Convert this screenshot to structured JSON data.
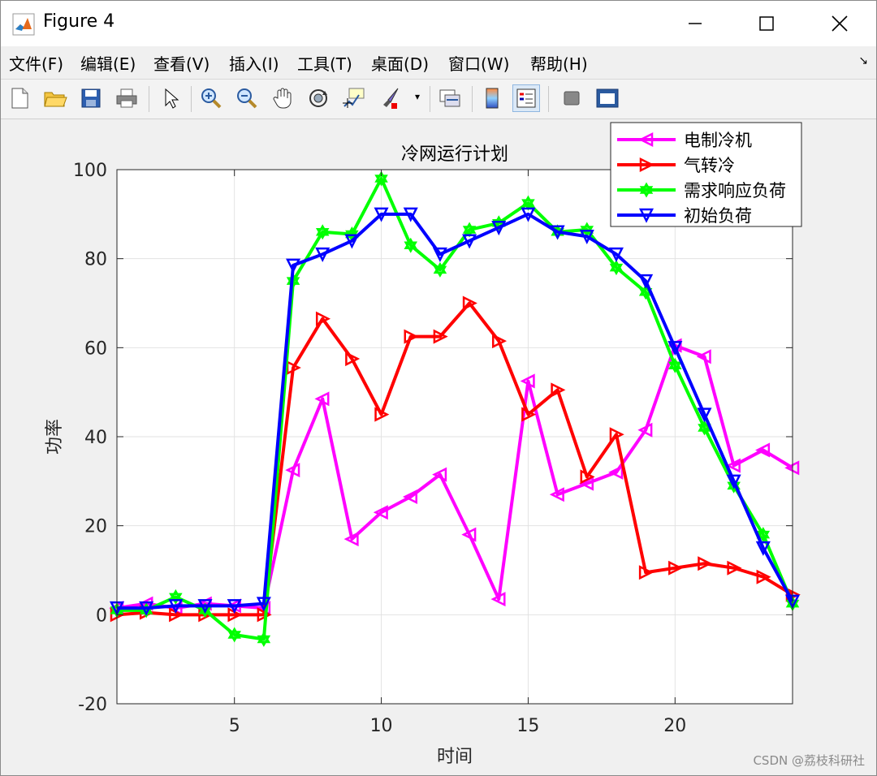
{
  "window": {
    "title": "Figure 4",
    "menus": [
      "文件(F)",
      "编辑(E)",
      "查看(V)",
      "插入(I)",
      "工具(T)",
      "桌面(D)",
      "窗口(W)",
      "帮助(H)"
    ]
  },
  "toolbar": {
    "buttons": [
      "new-file",
      "open-file",
      "save",
      "print",
      "pointer",
      "zoom-in",
      "zoom-out",
      "pan",
      "rotate-3d",
      "data-cursor",
      "brush",
      "link-plot",
      "colorbar",
      "legend",
      "hide-plot-tools",
      "show-plot-tools"
    ]
  },
  "watermark": "CSDN @荔枝科研社",
  "chart_data": {
    "type": "line",
    "title": "冷网运行计划",
    "xlabel": "时间",
    "ylabel": "功率",
    "xlim": [
      1,
      24
    ],
    "ylim": [
      -20,
      100
    ],
    "xticks": [
      5,
      10,
      15,
      20
    ],
    "yticks": [
      -20,
      0,
      20,
      40,
      60,
      80,
      100
    ],
    "grid": true,
    "legend_position": "top-right",
    "x": [
      1,
      2,
      3,
      4,
      5,
      6,
      7,
      8,
      9,
      10,
      11,
      12,
      13,
      14,
      15,
      16,
      17,
      18,
      19,
      20,
      21,
      22,
      23,
      24
    ],
    "series": [
      {
        "name": "电制冷机",
        "color": "#ff00ff",
        "marker": "triangle-left",
        "values": [
          1.5,
          2.5,
          1.5,
          2.5,
          2,
          1.5,
          32.5,
          48.5,
          17,
          23,
          26.5,
          31.5,
          18,
          3.5,
          52.5,
          27,
          29.5,
          32,
          41.5,
          60.5,
          58,
          33.5,
          37,
          33
        ]
      },
      {
        "name": "气转冷",
        "color": "#ff0000",
        "marker": "triangle-right",
        "values": [
          0,
          0.5,
          0,
          0,
          0,
          0,
          55.5,
          66.5,
          57.5,
          45,
          62.5,
          62.5,
          70,
          61.5,
          45,
          50.5,
          31,
          40.5,
          9.5,
          10.5,
          11.5,
          10.5,
          8.5,
          4.5
        ]
      },
      {
        "name": "需求响应负荷",
        "color": "#00ff00",
        "marker": "hexagram",
        "values": [
          1,
          1,
          4,
          1,
          -4.5,
          -5.5,
          75,
          86,
          85.5,
          98,
          83,
          77.5,
          86.5,
          88,
          92.5,
          86,
          86.5,
          78,
          72.5,
          56,
          42,
          29,
          18,
          2.5
        ]
      },
      {
        "name": "初始负荷",
        "color": "#0000ff",
        "marker": "triangle-down",
        "values": [
          1.5,
          1.5,
          2,
          2,
          2,
          2.5,
          78.5,
          81,
          84,
          90,
          90,
          81,
          84,
          87,
          90,
          86,
          85,
          81,
          75,
          60,
          45,
          30,
          15,
          3
        ]
      }
    ]
  }
}
